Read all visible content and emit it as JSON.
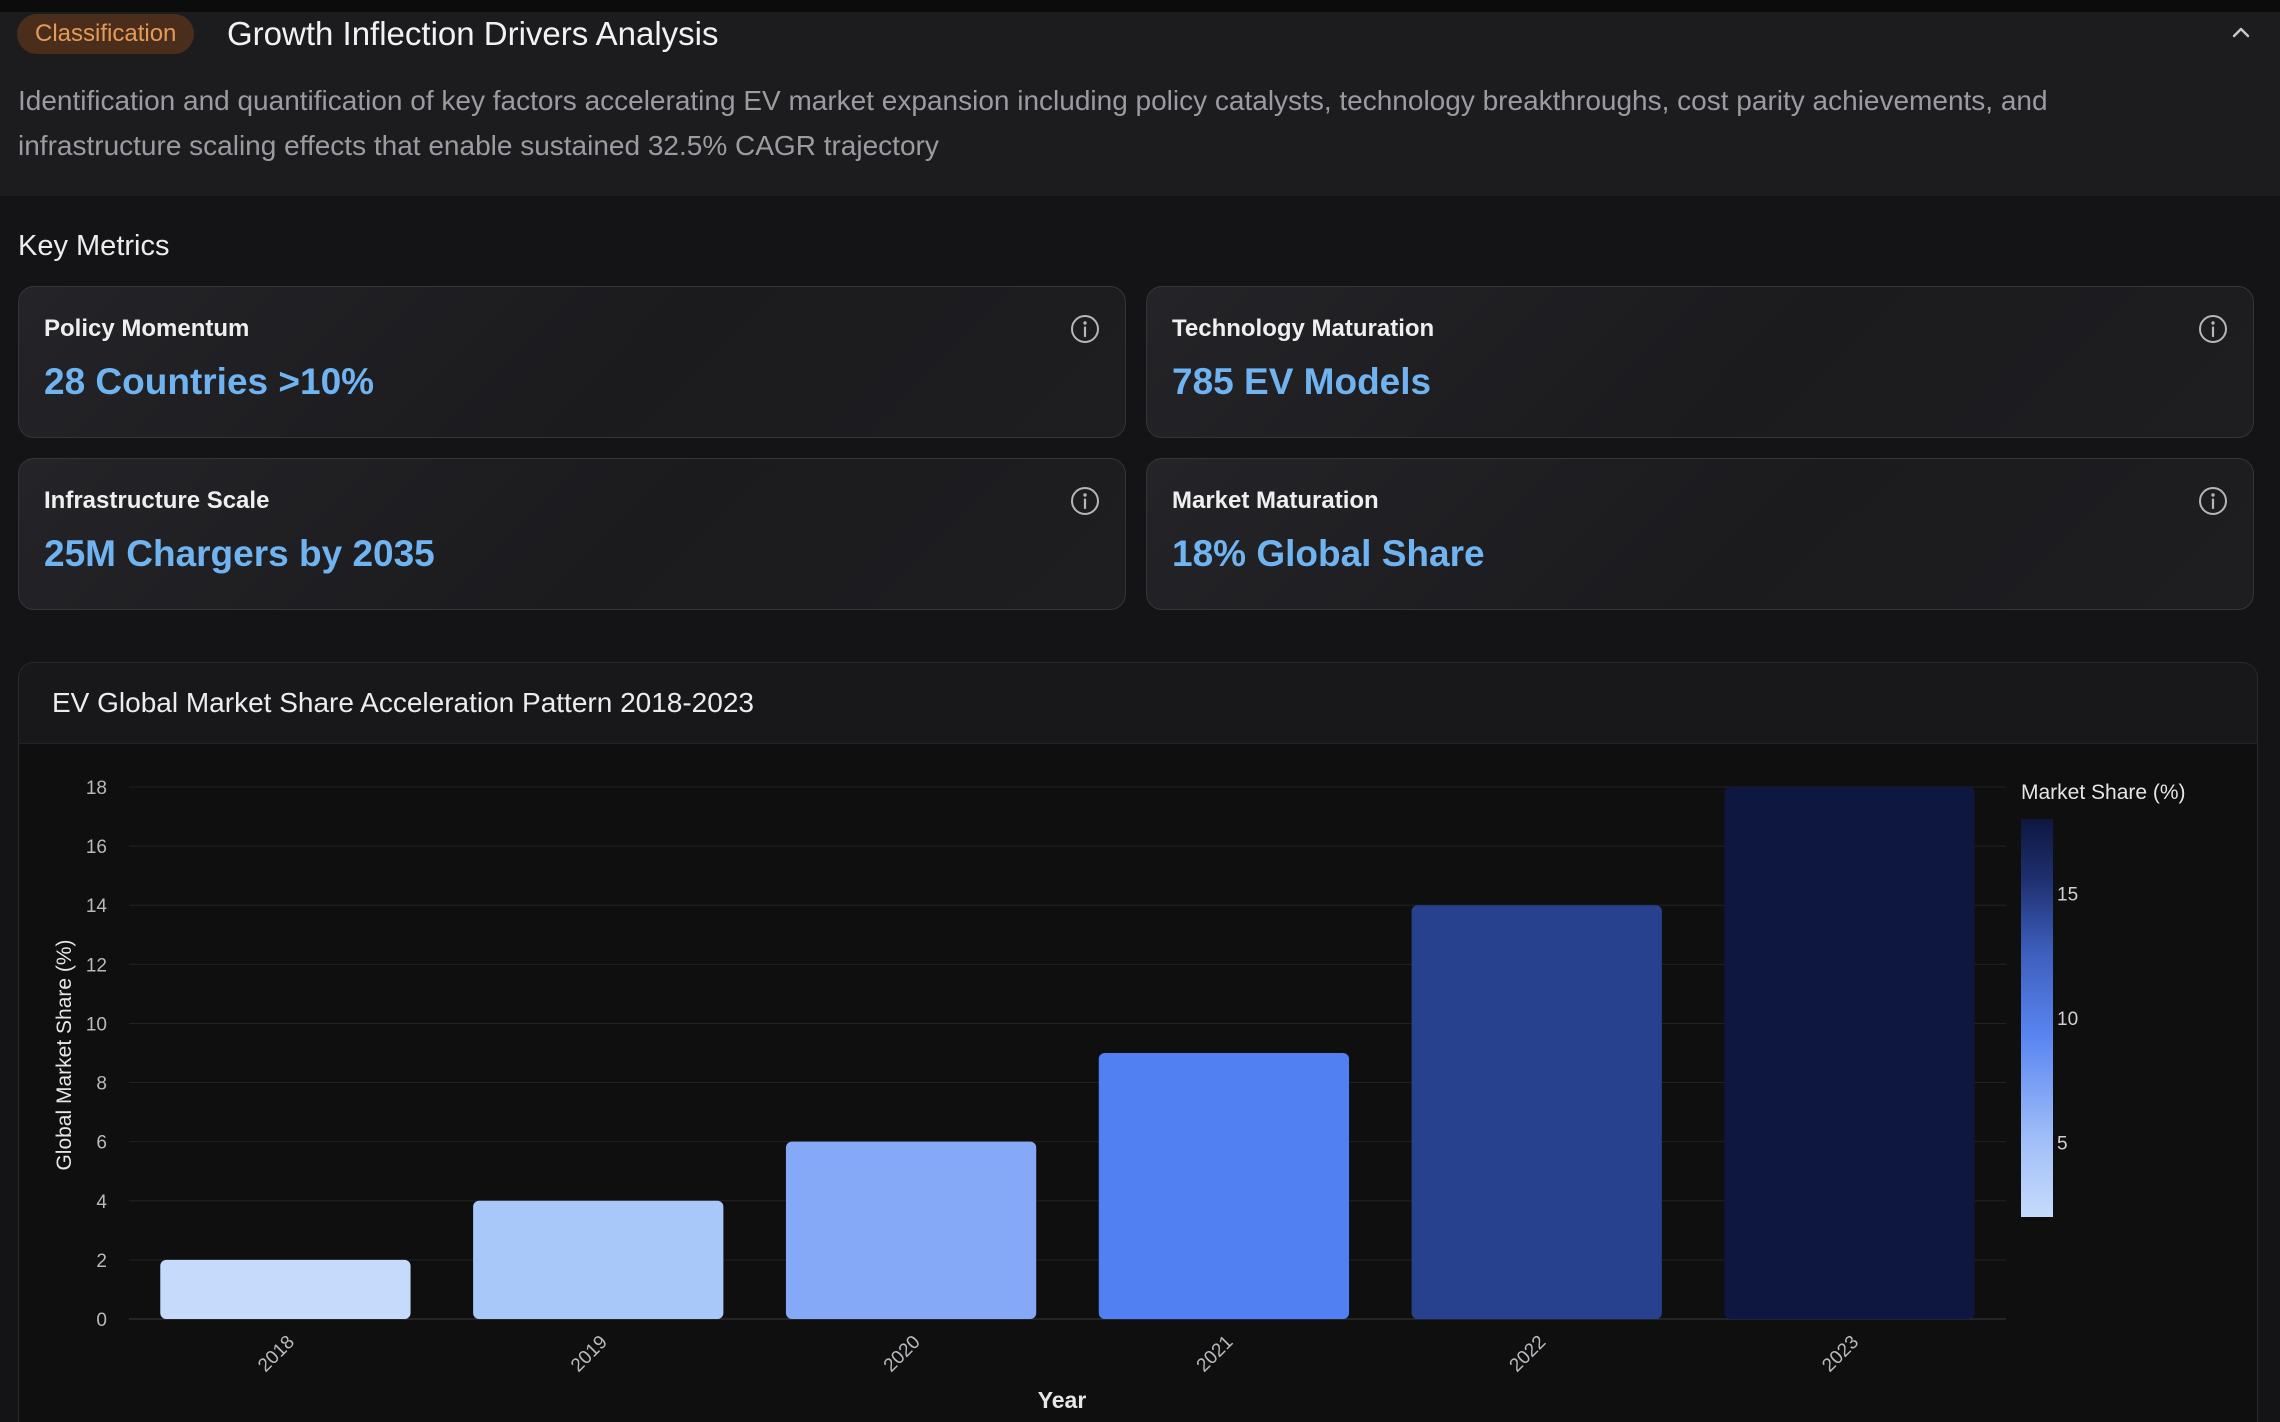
{
  "header": {
    "badge": "Classification",
    "title": "Growth Inflection Drivers Analysis",
    "description": "Identification and quantification of key factors accelerating EV market expansion including policy catalysts, technology breakthroughs, cost parity achievements, and infrastructure scaling effects that enable sustained 32.5% CAGR trajectory"
  },
  "key_metrics": {
    "title": "Key Metrics",
    "cards": [
      {
        "label": "Policy Momentum",
        "value": "28 Countries >10%"
      },
      {
        "label": "Technology Maturation",
        "value": "785 EV Models"
      },
      {
        "label": "Infrastructure Scale",
        "value": "25M Chargers by 2035"
      },
      {
        "label": "Market Maturation",
        "value": "18% Global Share"
      }
    ]
  },
  "icons": {
    "collapse": "chevron-up-icon",
    "info": "info-icon"
  },
  "colors": {
    "accent_value": "#6fb3f0",
    "badge_bg": "#4a2e1b",
    "badge_text": "#e59a5a",
    "colorscale": [
      "#c6dbfb",
      "#a9c8fa",
      "#85a9f6",
      "#5180f2",
      "#28418e",
      "#0d1740"
    ]
  },
  "chart_data": {
    "type": "bar",
    "title": "EV Global Market Share Acceleration Pattern 2018-2023",
    "xlabel": "Year",
    "ylabel": "Global Market Share (%)",
    "categories": [
      "2018",
      "2019",
      "2020",
      "2021",
      "2022",
      "2023"
    ],
    "values": [
      2,
      4,
      6,
      9,
      14,
      18
    ],
    "ylim": [
      0,
      18
    ],
    "yticks": [
      0,
      2,
      4,
      6,
      8,
      10,
      12,
      14,
      16,
      18
    ],
    "grid": true,
    "colorbar": {
      "title": "Market Share (%)",
      "ticks": [
        5,
        10,
        15
      ],
      "range": [
        2,
        18
      ],
      "placement": "right"
    }
  }
}
